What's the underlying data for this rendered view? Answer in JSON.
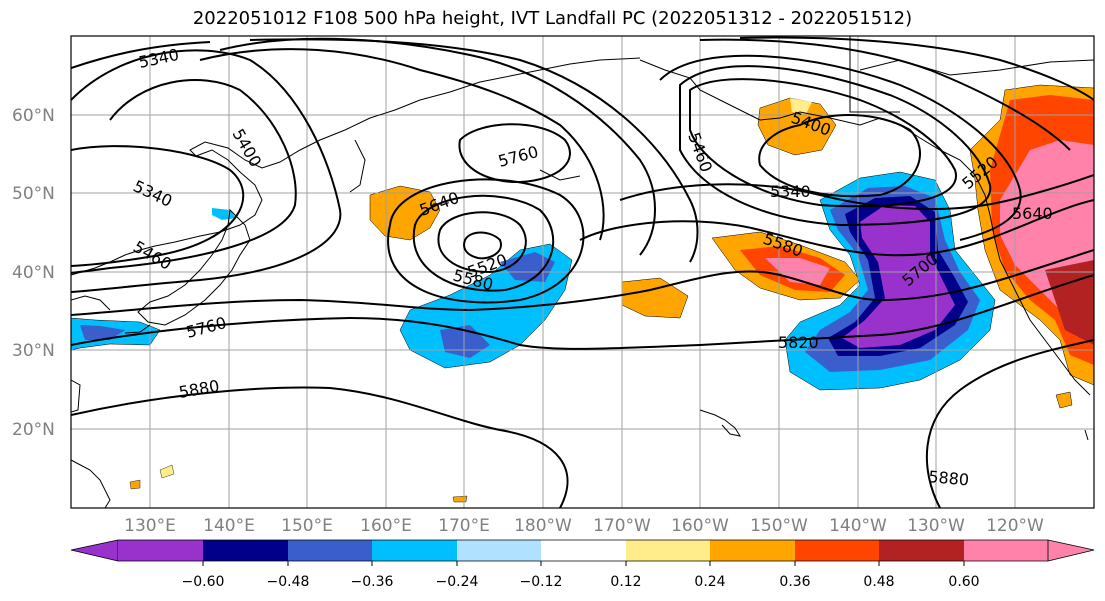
{
  "title": "2022051012 F108 500 hPa height, IVT Landfall PC (2022051312 - 2022051512)",
  "lat_labels": [
    "60°N",
    "50°N",
    "40°N",
    "30°N",
    "20°N"
  ],
  "lon_labels": [
    "130°E",
    "140°E",
    "150°E",
    "160°E",
    "170°E",
    "180°W",
    "170°W",
    "160°W",
    "150°W",
    "140°W",
    "130°W",
    "120°W"
  ],
  "contour_labels": [
    "5340",
    "5400",
    "5340",
    "5460",
    "5760",
    "5640",
    "5520",
    "5580",
    "5760",
    "5880",
    "5400",
    "5460",
    "5340",
    "5580",
    "5700",
    "5820",
    "5520",
    "5640",
    "5880"
  ],
  "colorbar": {
    "ticks": [
      "−0.60",
      "−0.48",
      "−0.36",
      "−0.24",
      "−0.12",
      "0.12",
      "0.24",
      "0.36",
      "0.48",
      "0.60"
    ],
    "colors": [
      "#9932CC",
      "#00008B",
      "#3A5FCD",
      "#00BFFF",
      "#B0E2FF",
      "#FFFFFF",
      "#FFEC8B",
      "#FFA500",
      "#FF4500",
      "#B22222",
      "#FF82AB"
    ]
  }
}
